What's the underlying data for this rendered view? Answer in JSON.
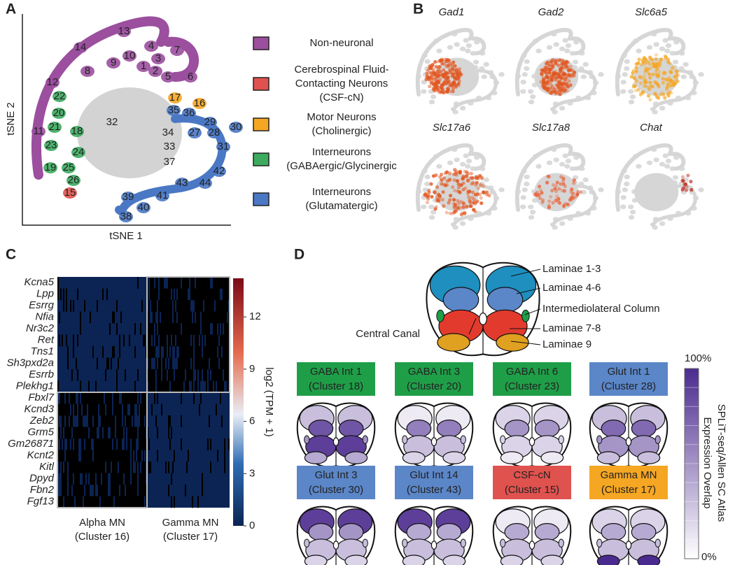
{
  "panels": {
    "a": "A",
    "b": "B",
    "c": "C",
    "d": "D"
  },
  "tsne": {
    "x_label": "tSNE 1",
    "y_label": "tSNE 2",
    "clusters": [
      "13",
      "14",
      "7",
      "4",
      "3",
      "10",
      "9",
      "8",
      "1",
      "2",
      "5",
      "6",
      "12",
      "11",
      "22",
      "20",
      "21",
      "18",
      "23",
      "24",
      "19",
      "25",
      "26",
      "15",
      "17",
      "16",
      "35",
      "36",
      "32",
      "34",
      "27",
      "29",
      "28",
      "30",
      "31",
      "33",
      "37",
      "42",
      "43",
      "44",
      "39",
      "41",
      "40",
      "38"
    ]
  },
  "legend": [
    {
      "lines": [
        "Non-neuronal"
      ],
      "color": "#9b4f9e"
    },
    {
      "lines": [
        "Cerebrospinal Fluid-",
        "Contacting Neurons",
        "(CSF-cN)"
      ],
      "color": "#e0524e"
    },
    {
      "lines": [
        "Motor Neurons",
        "(Cholinergic)"
      ],
      "color": "#f5a623"
    },
    {
      "lines": [
        "Interneurons",
        "(GABAergic/Glycinergic"
      ],
      "color": "#3cab5e"
    },
    {
      "lines": [
        "Interneurons",
        "(Glutamatergic)"
      ],
      "color": "#4a78c4"
    }
  ],
  "genes": [
    "Gad1",
    "Gad2",
    "Slc6a5",
    "Slc17a6",
    "Slc17a8",
    "Chat"
  ],
  "heatmap": {
    "genes": [
      "Kcna5",
      "Lpp",
      "Esrrg",
      "Nfia",
      "Nr3c2",
      "Ret",
      "Tns1",
      "Sh3pxd2a",
      "Esrrb",
      "Plekhg1",
      "Fbxl7",
      "Kcnd3",
      "Zeb2",
      "Grm5",
      "Gm26871",
      "Kcnt2",
      "Kitl",
      "Dpyd",
      "Fbn2",
      "Fgf13"
    ],
    "colorbar_label": "log2 (TPM + 1)",
    "colorbar_ticks": [
      0,
      3,
      6,
      9,
      12
    ],
    "columns": [
      {
        "lines": [
          "Alpha MN",
          "(Cluster 16)"
        ]
      },
      {
        "lines": [
          "Gamma MN",
          "(Cluster 17)"
        ]
      }
    ]
  },
  "atlas": {
    "labels": [
      "Laminae 1-3",
      "Laminae 4-6",
      "Intermediolateral Column",
      "Central Canal",
      "Laminae 7-8",
      "Laminae 9"
    ],
    "panels": [
      {
        "lines": [
          "GABA Int 1",
          "(Cluster 18)"
        ],
        "color": "#1f9e48"
      },
      {
        "lines": [
          "GABA Int 3",
          "(Cluster 20)"
        ],
        "color": "#1f9e48"
      },
      {
        "lines": [
          "GABA Int 6",
          "(Cluster 23)"
        ],
        "color": "#1f9e48"
      },
      {
        "lines": [
          "Glut Int 1",
          "(Cluster 28)"
        ],
        "color": "#5b86c8"
      },
      {
        "lines": [
          "Glut Int 3",
          "(Cluster 30)"
        ],
        "color": "#5b86c8"
      },
      {
        "lines": [
          "Glut Int 14",
          "(Cluster 43)"
        ],
        "color": "#5b86c8"
      },
      {
        "lines": [
          "CSF-cN",
          "(Cluster 15)"
        ],
        "color": "#e0524e"
      },
      {
        "lines": [
          "Gamma MN",
          "(Cluster 17)"
        ],
        "color": "#f5a623"
      }
    ],
    "scale": {
      "max": "100%",
      "min": "0%",
      "title_lines": [
        "SPLiT-seq/Allen SC Atlas",
        "Expression Overlap"
      ]
    }
  }
}
